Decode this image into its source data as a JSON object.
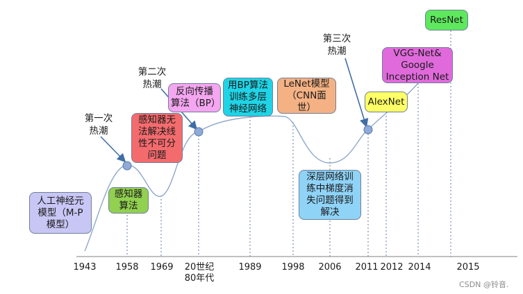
{
  "years": [
    "1943",
    "1958",
    "1969",
    "20世纪\n80年代",
    "1989",
    "1998",
    "2006",
    "2011",
    "2012",
    "2014",
    "2015"
  ],
  "waves": {
    "first": "第一次\n热潮",
    "second": "第二次\n热潮",
    "third": "第三次\n热潮"
  },
  "events": {
    "mp_model": "人工神经元\n模型（M-P\n模型）",
    "perceptron": "感知器\n算法",
    "xor_problem": "感知器无\n法解决线\n性不可分\n问题",
    "backprop": "反向传播\n算法（BP）",
    "bp_multilayer": "用BP算法\n训练多层\n神经网络",
    "lenet": "LeNet模型\n（CNN面\n世）",
    "vanishing_gradient": "深层网络训\n练中梯度消\n失问题得到\n解决",
    "alexnet": "AlexNet",
    "vgg_inception": "VGG-Net&\nGoogle\nInception Net",
    "resnet": "ResNet"
  },
  "colors": {
    "curve": "#8fa8c8",
    "dashed": "#6f86a8",
    "dot": "#8faad6",
    "arrow": "#3f6ea5",
    "mp_model": "#c7c6f4",
    "perceptron": "#92d050",
    "xor_problem": "#f46b6e",
    "backprop": "#f4a6f0",
    "bp_multilayer": "#1fd4e6",
    "lenet": "#f4b183",
    "vanishing_gradient": "#8fd3f7",
    "alexnet": "#ffff66",
    "vgg_inception": "#e06adb",
    "resnet": "#5ee85e"
  },
  "watermark": "CSDN @铃音."
}
